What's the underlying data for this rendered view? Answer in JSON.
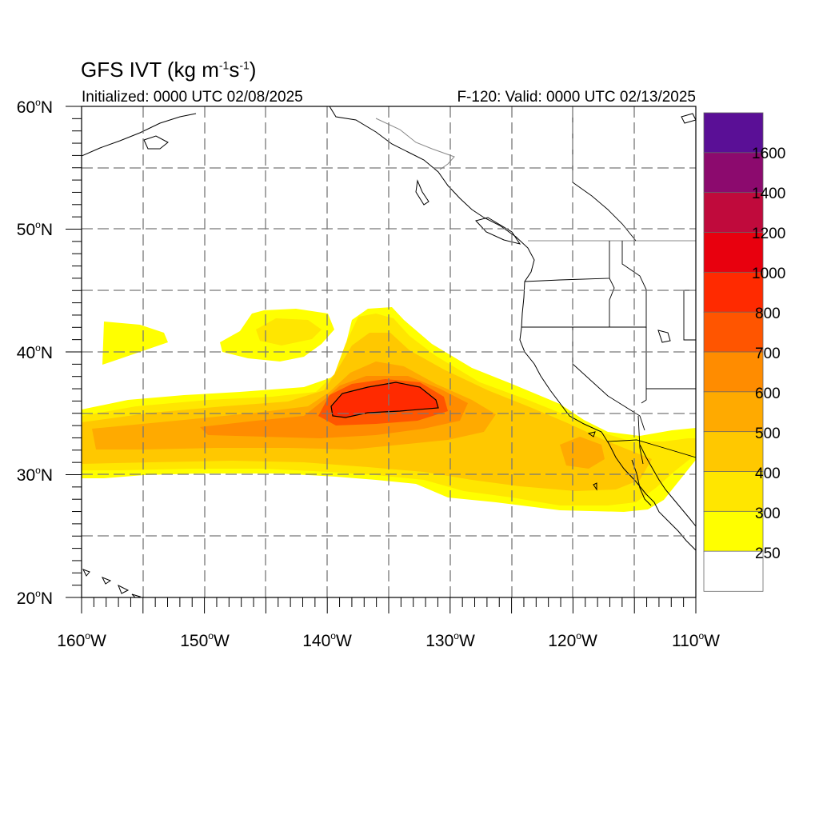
{
  "title": {
    "prefix": "GFS IVT (kg m",
    "exp1": "-1",
    "mid": "s",
    "exp2": "-1",
    "suffix": ")"
  },
  "subtitle_left": "Initialized: 0000 UTC 02/08/2025",
  "subtitle_right": "F-120: Valid: 0000 UTC 02/13/2025",
  "map": {
    "lon_range": [
      -160,
      -110
    ],
    "lat_range": [
      20,
      60
    ],
    "lon_ticks": [
      {
        "deg": "160",
        "hemi": "W"
      },
      {
        "deg": "150",
        "hemi": "W"
      },
      {
        "deg": "140",
        "hemi": "W"
      },
      {
        "deg": "130",
        "hemi": "W"
      },
      {
        "deg": "120",
        "hemi": "W"
      },
      {
        "deg": "110",
        "hemi": "W"
      }
    ],
    "lat_ticks": [
      {
        "deg": "60",
        "hemi": "N"
      },
      {
        "deg": "50",
        "hemi": "N"
      },
      {
        "deg": "40",
        "hemi": "N"
      },
      {
        "deg": "30",
        "hemi": "N"
      },
      {
        "deg": "20",
        "hemi": "N"
      }
    ],
    "degree_symbol": "o",
    "gridlines": "dashed every 5 degrees",
    "contour_level": 800
  },
  "colorbar": {
    "labels": [
      "1600",
      "1400",
      "1200",
      "1000",
      "800",
      "700",
      "600",
      "500",
      "400",
      "300",
      "250"
    ],
    "levels": [
      250,
      300,
      400,
      500,
      600,
      700,
      800,
      1000,
      1200,
      1400,
      1600
    ],
    "colors_top_to_bottom": [
      "#5a0f96",
      "#8c0a6e",
      "#c00a3c",
      "#e8000e",
      "#ff2a00",
      "#ff5500",
      "#ff8c00",
      "#ffaa00",
      "#ffc800",
      "#ffe600",
      "#ffff00",
      "#ffffff"
    ]
  }
}
